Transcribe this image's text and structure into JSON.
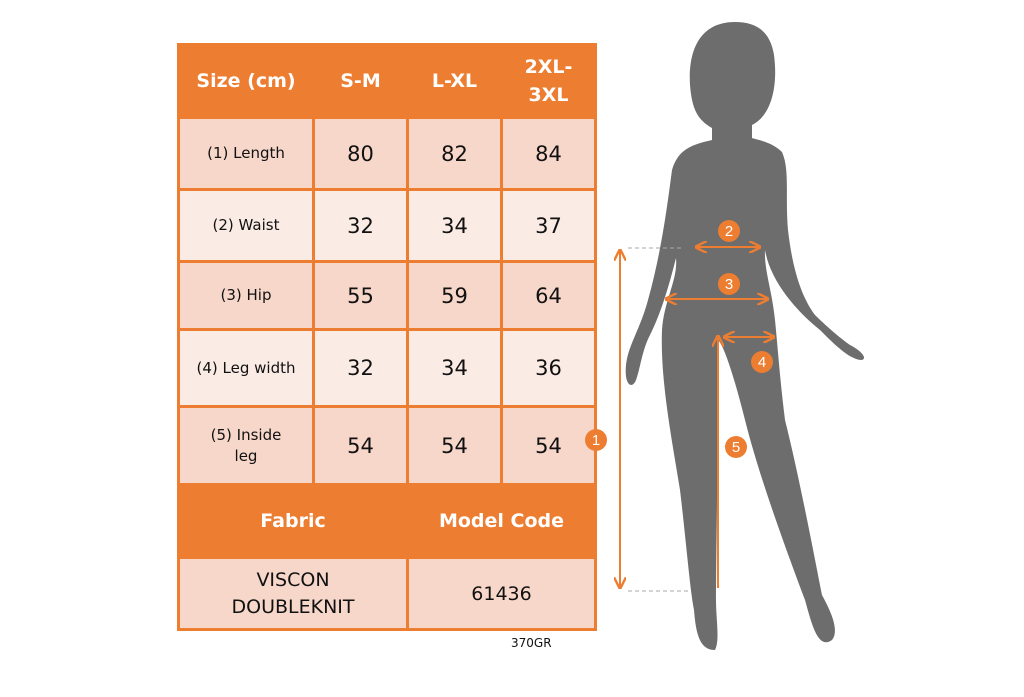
{
  "table": {
    "headers": [
      "Size (cm)",
      "S-M",
      "L-XL",
      "2XL-3XL"
    ],
    "rows": [
      {
        "label": "(1) Length",
        "values": [
          "80",
          "82",
          "84"
        ]
      },
      {
        "label": "(2) Waist",
        "values": [
          "32",
          "34",
          "37"
        ]
      },
      {
        "label": "(3) Hip",
        "values": [
          "55",
          "59",
          "64"
        ]
      },
      {
        "label": "(4) Leg width",
        "values": [
          "32",
          "34",
          "36"
        ]
      },
      {
        "label": "(5) Inside leg",
        "values": [
          "54",
          "54",
          "54"
        ]
      }
    ],
    "footer_headers": [
      "Fabric",
      "Model Code"
    ],
    "footer_values": [
      "VISCON DOUBLEKNIT",
      "61436"
    ]
  },
  "product_code": "370GR",
  "markers": [
    "1",
    "2",
    "3",
    "4",
    "5"
  ],
  "colors": {
    "accent": "#ed7d31",
    "silhouette": "#6d6d6d",
    "row_dark": "#f8d7cb",
    "row_light": "#fbebe5"
  }
}
